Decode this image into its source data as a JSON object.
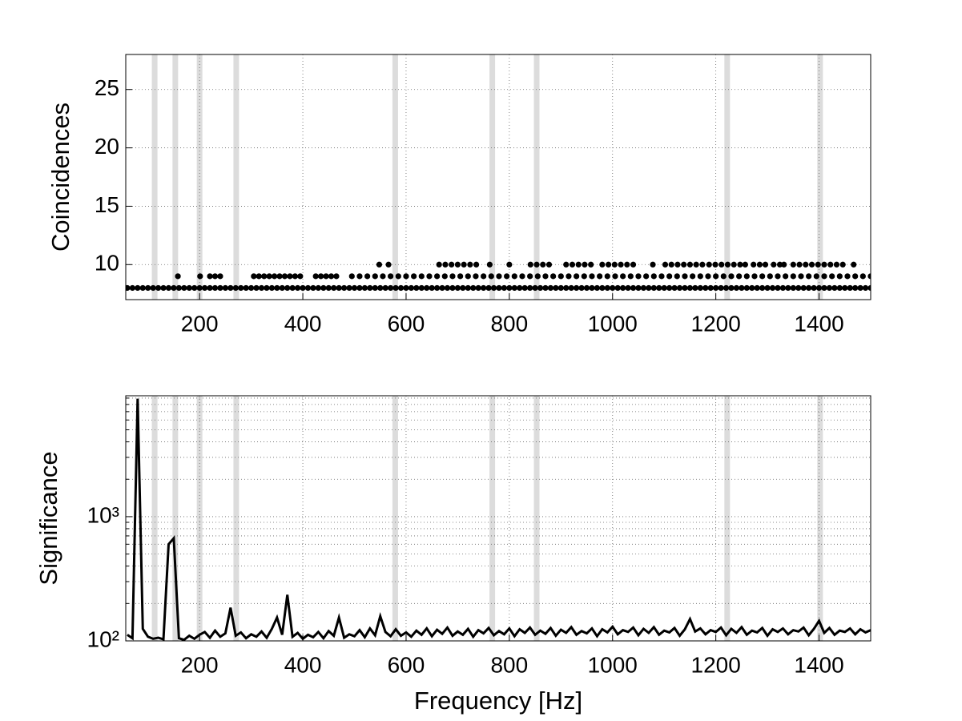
{
  "chart_data": [
    {
      "type": "scatter",
      "ylabel": "Coincidences",
      "xlim": [
        57,
        1500
      ],
      "xticks": [
        200,
        400,
        600,
        800,
        1000,
        1200,
        1400
      ],
      "ylim": [
        7,
        28
      ],
      "yticks": [
        10,
        15,
        20,
        25
      ],
      "grid": true,
      "color": "#000000",
      "bands": [
        113,
        153,
        200,
        271,
        579,
        767,
        853,
        1222,
        1402
      ],
      "series": [
        {
          "color": "#000000",
          "x": [
            60,
            70,
            80,
            90,
            100,
            110,
            120,
            130,
            140,
            150,
            160,
            170,
            180,
            190,
            200,
            210,
            220,
            230,
            240,
            250,
            260,
            270,
            280,
            290,
            300,
            310,
            320,
            330,
            340,
            350,
            360,
            370,
            380,
            390,
            400,
            410,
            420,
            430,
            440,
            450,
            460,
            470,
            480,
            490,
            500,
            510,
            520,
            530,
            540,
            550,
            560,
            570,
            580,
            590,
            600,
            610,
            620,
            630,
            640,
            650,
            660,
            670,
            680,
            690,
            700,
            710,
            720,
            730,
            740,
            750,
            760,
            770,
            780,
            790,
            800,
            810,
            820,
            830,
            840,
            850,
            860,
            870,
            880,
            890,
            900,
            910,
            920,
            930,
            940,
            950,
            960,
            970,
            980,
            990,
            1000,
            1010,
            1020,
            1030,
            1040,
            1050,
            1060,
            1070,
            1080,
            1090,
            1100,
            1110,
            1120,
            1130,
            1140,
            1150,
            1160,
            1170,
            1180,
            1190,
            1200,
            1210,
            1220,
            1230,
            1240,
            1250,
            1260,
            1270,
            1280,
            1290,
            1300,
            1310,
            1320,
            1330,
            1340,
            1350,
            1360,
            1370,
            1380,
            1390,
            1400,
            1410,
            1420,
            1430,
            1440,
            1450,
            1460,
            1470,
            1480,
            1490,
            1500
          ],
          "values": [
            8,
            8,
            8,
            8,
            8,
            8,
            8,
            8,
            8,
            8,
            8,
            8,
            8,
            8,
            8,
            8,
            8,
            8,
            8,
            8,
            8,
            8,
            8,
            8,
            8,
            8,
            8,
            8,
            8,
            8,
            8,
            8,
            8,
            8,
            8,
            8,
            8,
            8,
            8,
            8,
            8,
            8,
            8,
            8,
            8,
            8,
            8,
            8,
            8,
            8,
            8,
            8,
            8,
            8,
            8,
            8,
            8,
            8,
            8,
            8,
            8,
            8,
            8,
            8,
            8,
            8,
            8,
            8,
            8,
            8,
            8,
            8,
            8,
            8,
            8,
            8,
            8,
            8,
            8,
            8,
            8,
            8,
            8,
            8,
            8,
            8,
            8,
            8,
            8,
            8,
            8,
            8,
            8,
            8,
            8,
            8,
            8,
            8,
            8,
            8,
            8,
            8,
            8,
            8,
            8,
            8,
            8,
            8,
            8,
            8,
            8,
            8,
            8,
            8,
            8,
            8,
            8,
            8,
            8,
            8,
            8,
            8,
            8,
            8,
            8,
            8,
            8,
            8,
            8,
            8,
            8,
            8,
            8,
            8,
            8,
            8,
            8,
            8,
            8,
            8,
            8,
            8,
            8,
            8,
            8
          ]
        },
        {
          "color": "#000000",
          "x": [
            158,
            201,
            220,
            230,
            240,
            305,
            315,
            325,
            335,
            345,
            355,
            365,
            375,
            385,
            395,
            425,
            435,
            445,
            455,
            465,
            495,
            510,
            525,
            540,
            555,
            570,
            585,
            600,
            615,
            630,
            645,
            660,
            675,
            690,
            705,
            720,
            735,
            750,
            765,
            780,
            795,
            810,
            825,
            840,
            855,
            870,
            885,
            900,
            915,
            930,
            945,
            960,
            975,
            990,
            1005,
            1020,
            1035,
            1050,
            1065,
            1080,
            1095,
            1110,
            1125,
            1140,
            1155,
            1170,
            1185,
            1200,
            1215,
            1230,
            1245,
            1260,
            1275,
            1290,
            1305,
            1320,
            1335,
            1350,
            1365,
            1380,
            1395,
            1410,
            1425,
            1440,
            1455,
            1470,
            1485,
            1500
          ],
          "values": [
            9,
            9,
            9,
            9,
            9,
            9,
            9,
            9,
            9,
            9,
            9,
            9,
            9,
            9,
            9,
            9,
            9,
            9,
            9,
            9,
            9,
            9,
            9,
            9,
            9,
            9,
            9,
            9,
            9,
            9,
            9,
            9,
            9,
            9,
            9,
            9,
            9,
            9,
            9,
            9,
            9,
            9,
            9,
            9,
            9,
            9,
            9,
            9,
            9,
            9,
            9,
            9,
            9,
            9,
            9,
            9,
            9,
            9,
            9,
            9,
            9,
            9,
            9,
            9,
            9,
            9,
            9,
            9,
            9,
            9,
            9,
            9,
            9,
            9,
            9,
            9,
            9,
            9,
            9,
            9,
            9,
            9,
            9,
            9,
            9,
            9,
            9,
            9
          ]
        },
        {
          "color": "#000000",
          "x": [
            548,
            566,
            664,
            676,
            688,
            700,
            712,
            724,
            736,
            762,
            800,
            841,
            853,
            865,
            877,
            910,
            922,
            934,
            946,
            958,
            980,
            992,
            1004,
            1016,
            1028,
            1040,
            1078,
            1102,
            1114,
            1126,
            1138,
            1150,
            1162,
            1174,
            1187,
            1199,
            1211,
            1223,
            1235,
            1247,
            1257,
            1273,
            1285,
            1296,
            1312,
            1324,
            1332,
            1350,
            1362,
            1374,
            1386,
            1398,
            1410,
            1422,
            1434,
            1446,
            1467
          ],
          "values": [
            10,
            10,
            10,
            10,
            10,
            10,
            10,
            10,
            10,
            10,
            10,
            10,
            10,
            10,
            10,
            10,
            10,
            10,
            10,
            10,
            10,
            10,
            10,
            10,
            10,
            10,
            10,
            10,
            10,
            10,
            10,
            10,
            10,
            10,
            10,
            10,
            10,
            10,
            10,
            10,
            10,
            10,
            10,
            10,
            10,
            10,
            10,
            10,
            10,
            10,
            10,
            10,
            10,
            10,
            10,
            10,
            10
          ]
        }
      ]
    },
    {
      "type": "line",
      "ylabel": "Significance",
      "xlabel": "Frequency [Hz]",
      "xlim": [
        57,
        1500
      ],
      "xticks": [
        200,
        400,
        600,
        800,
        1000,
        1200,
        1400
      ],
      "ylim": [
        100,
        9400
      ],
      "log_y": true,
      "yticks": [
        {
          "value": 100,
          "label": "10²"
        },
        {
          "value": 1000,
          "label": "10³"
        }
      ],
      "yminor_ticks": [
        200,
        300,
        400,
        500,
        600,
        700,
        800,
        900,
        2000,
        3000,
        4000,
        5000,
        6000,
        7000,
        8000,
        9000
      ],
      "grid": true,
      "color": "#000000",
      "bands": [
        113,
        153,
        200,
        271,
        579,
        767,
        853,
        1222,
        1402
      ],
      "x": [
        60,
        70,
        80,
        90,
        100,
        110,
        120,
        130,
        140,
        150,
        160,
        170,
        180,
        190,
        200,
        210,
        220,
        230,
        240,
        250,
        260,
        270,
        280,
        290,
        300,
        310,
        320,
        330,
        340,
        350,
        360,
        370,
        380,
        390,
        400,
        410,
        420,
        430,
        440,
        450,
        460,
        470,
        480,
        490,
        500,
        510,
        520,
        530,
        540,
        550,
        560,
        570,
        580,
        590,
        600,
        610,
        620,
        630,
        640,
        650,
        660,
        670,
        680,
        690,
        700,
        710,
        720,
        730,
        740,
        750,
        760,
        770,
        780,
        790,
        800,
        810,
        820,
        830,
        840,
        850,
        860,
        870,
        880,
        890,
        900,
        910,
        920,
        930,
        940,
        950,
        960,
        970,
        980,
        990,
        1000,
        1010,
        1020,
        1030,
        1040,
        1050,
        1060,
        1070,
        1080,
        1090,
        1100,
        1110,
        1120,
        1130,
        1140,
        1150,
        1160,
        1170,
        1180,
        1190,
        1200,
        1210,
        1220,
        1230,
        1240,
        1250,
        1260,
        1270,
        1280,
        1290,
        1300,
        1310,
        1320,
        1330,
        1340,
        1350,
        1360,
        1370,
        1380,
        1390,
        1400,
        1410,
        1420,
        1430,
        1440,
        1450,
        1460,
        1470,
        1480,
        1490,
        1500
      ],
      "values": [
        112,
        105,
        8900,
        125,
        108,
        104,
        106,
        103,
        600,
        670,
        105,
        102,
        110,
        104,
        112,
        118,
        106,
        121,
        108,
        115,
        185,
        110,
        117,
        105,
        113,
        108,
        119,
        106,
        125,
        154,
        112,
        235,
        108,
        116,
        104,
        112,
        107,
        118,
        105,
        120,
        110,
        154,
        106,
        113,
        109,
        122,
        107,
        126,
        111,
        158,
        118,
        109,
        124,
        110,
        117,
        108,
        121,
        112,
        126,
        109,
        123,
        114,
        128,
        110,
        119,
        112,
        125,
        108,
        122,
        115,
        127,
        111,
        120,
        113,
        126,
        109,
        124,
        116,
        128,
        112,
        121,
        114,
        127,
        110,
        123,
        116,
        129,
        112,
        120,
        115,
        126,
        109,
        124,
        117,
        130,
        113,
        122,
        118,
        128,
        111,
        125,
        116,
        129,
        112,
        121,
        117,
        127,
        110,
        124,
        150,
        119,
        126,
        113,
        122,
        118,
        128,
        111,
        125,
        116,
        129,
        112,
        121,
        117,
        127,
        110,
        124,
        118,
        126,
        113,
        122,
        119,
        128,
        111,
        125,
        145,
        116,
        127,
        112,
        121,
        118,
        126,
        113,
        124,
        117,
        122
      ]
    }
  ]
}
